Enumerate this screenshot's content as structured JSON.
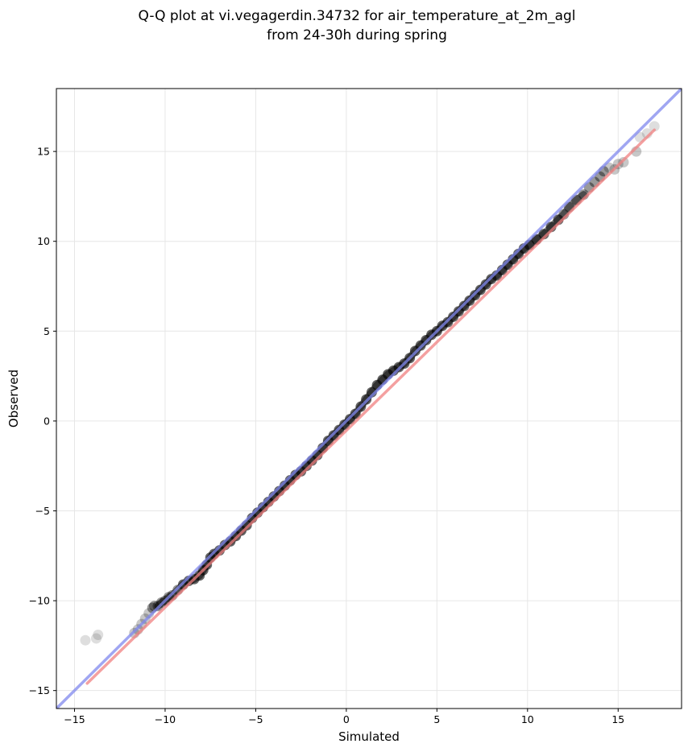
{
  "chart_data": {
    "type": "scatter",
    "title": "Q-Q plot at vi.vegagerdin.34732 for air_temperature_at_2m_agl",
    "subtitle": "from 24-30h during spring",
    "xlabel": "Simulated",
    "ylabel": "Observed",
    "xlim": [
      -16,
      18.5
    ],
    "ylim": [
      -16,
      18.5
    ],
    "x_ticks": [
      -15,
      -10,
      -5,
      0,
      5,
      10,
      15
    ],
    "y_ticks": [
      -15,
      -10,
      -5,
      0,
      5,
      10,
      15
    ],
    "x_tick_labels": [
      "−15",
      "−10",
      "−5",
      "0",
      "5",
      "10",
      "15"
    ],
    "y_tick_labels": [
      "−15",
      "−10",
      "−5",
      "0",
      "5",
      "10",
      "15"
    ],
    "grid": true,
    "series": [
      {
        "kind": "reference_line",
        "color": "#8088ee",
        "x": [
          -16,
          18.5
        ],
        "y": [
          -16,
          18.5
        ]
      },
      {
        "kind": "fit_line",
        "color": "#f08080",
        "x": [
          -14.3,
          17
        ],
        "y": [
          -14.6,
          16.2
        ]
      },
      {
        "kind": "quantile_points",
        "color": "#000000",
        "x": [
          -14.4,
          -13.8,
          -13.7,
          -11.7,
          -11.5,
          -11.3,
          -11.1,
          -10.9,
          -10.7,
          -10.6,
          -10.4,
          -10.2,
          -10.0,
          -9.8,
          -9.6,
          -9.3,
          -9.0,
          -8.7,
          -8.4,
          -8.1,
          -7.9,
          -7.7,
          -7.5,
          -7.3,
          -7.0,
          -6.7,
          -6.4,
          -6.1,
          -5.8,
          -5.5,
          -5.2,
          -4.9,
          -4.6,
          -4.3,
          -4.0,
          -3.7,
          -3.4,
          -3.1,
          -2.8,
          -2.5,
          -2.2,
          -1.9,
          -1.6,
          -1.3,
          -1.0,
          -0.7,
          -0.4,
          -0.1,
          0.2,
          0.5,
          0.8,
          1.1,
          1.4,
          1.7,
          2.0,
          2.3,
          2.6,
          2.9,
          3.2,
          3.5,
          3.8,
          4.1,
          4.4,
          4.7,
          5.0,
          5.3,
          5.6,
          5.9,
          6.2,
          6.5,
          6.8,
          7.1,
          7.4,
          7.7,
          8.0,
          8.3,
          8.6,
          8.9,
          9.2,
          9.5,
          9.8,
          10.1,
          10.5,
          10.9,
          11.3,
          11.7,
          12.0,
          12.3,
          12.7,
          13.1,
          13.4,
          13.7,
          14.0,
          14.2,
          14.5,
          14.8,
          15.0,
          15.3,
          16.0,
          16.2,
          16.6,
          17.0
        ],
        "y": [
          -12.2,
          -12.1,
          -11.9,
          -11.8,
          -11.6,
          -11.3,
          -11.0,
          -10.7,
          -10.4,
          -10.3,
          -10.3,
          -10.1,
          -10.0,
          -9.8,
          -9.7,
          -9.4,
          -9.1,
          -8.9,
          -8.8,
          -8.6,
          -8.3,
          -8.0,
          -7.6,
          -7.4,
          -7.2,
          -6.9,
          -6.7,
          -6.4,
          -6.1,
          -5.8,
          -5.4,
          -5.1,
          -4.8,
          -4.5,
          -4.2,
          -3.9,
          -3.6,
          -3.3,
          -3.0,
          -2.8,
          -2.5,
          -2.2,
          -1.9,
          -1.5,
          -1.1,
          -0.8,
          -0.5,
          -0.2,
          0.1,
          0.4,
          0.8,
          1.2,
          1.6,
          2.0,
          2.3,
          2.6,
          2.8,
          3.0,
          3.2,
          3.5,
          3.9,
          4.2,
          4.5,
          4.8,
          5.0,
          5.3,
          5.5,
          5.8,
          6.1,
          6.4,
          6.7,
          7.0,
          7.3,
          7.6,
          7.9,
          8.1,
          8.4,
          8.7,
          9.0,
          9.3,
          9.6,
          9.8,
          10.1,
          10.4,
          10.8,
          11.2,
          11.5,
          11.9,
          12.3,
          12.6,
          13.0,
          13.3,
          13.6,
          13.9,
          14.1,
          14.0,
          14.3,
          14.4,
          15.0,
          15.8,
          16.0,
          16.4
        ]
      }
    ]
  }
}
